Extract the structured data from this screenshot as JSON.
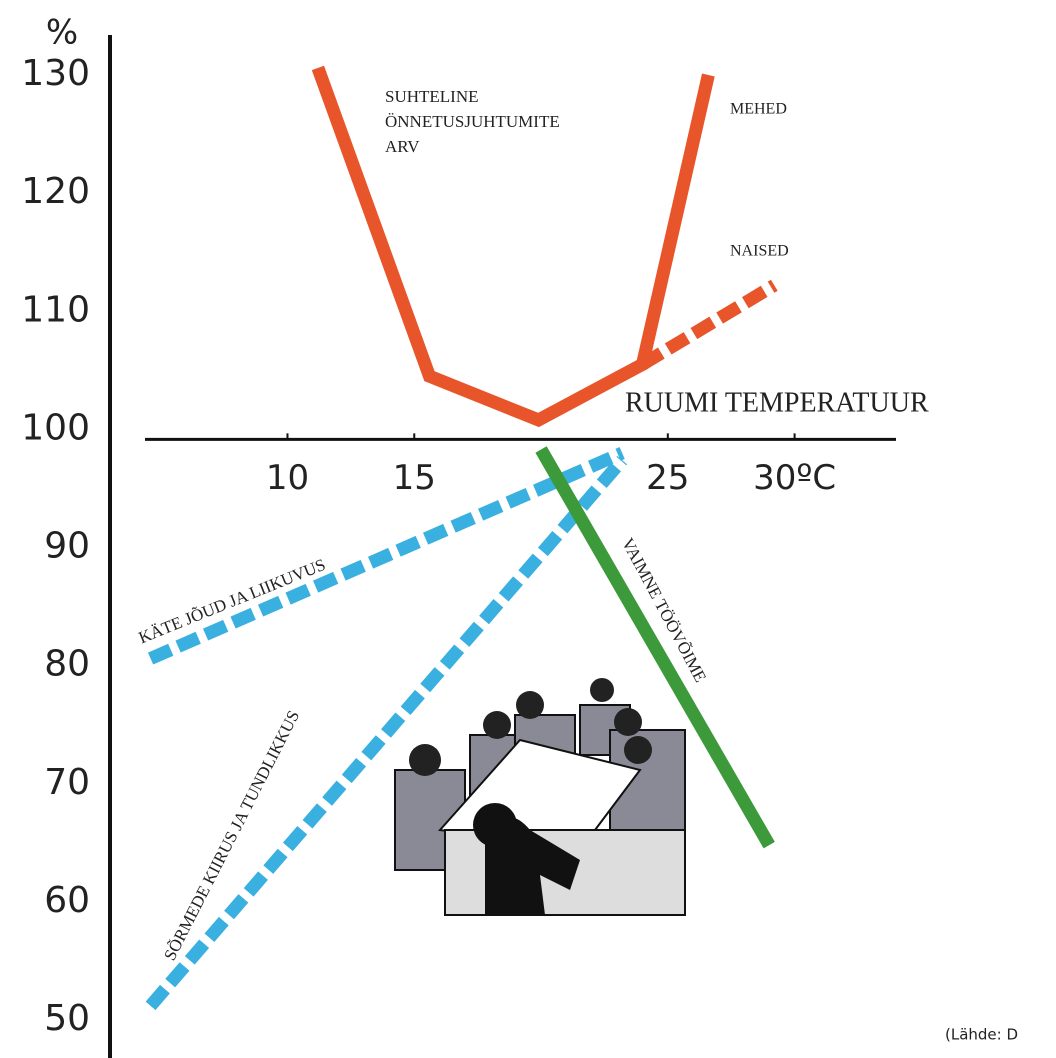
{
  "chart_data": {
    "type": "line",
    "y_label": "%",
    "x_label": "RUUMI TEMPERATUUR",
    "annotation": [
      "SUHTELINE",
      "ÖNNETUSJUHTUMITE",
      "ARV"
    ],
    "source": "(Lähde: D",
    "xlim": [
      3,
      34
    ],
    "ylim": [
      50,
      130
    ],
    "xticks": [
      10,
      15,
      25,
      {
        "value": 30,
        "label": "30ºC"
      }
    ],
    "yticks": [
      50,
      60,
      70,
      80,
      90,
      100,
      110,
      120,
      130
    ],
    "x_axis_crosses": 100,
    "grid": false,
    "series": [
      {
        "name": "MEHED",
        "color": "#e8552a",
        "dashed": false,
        "x": [
          11.2,
          15.6,
          19.9,
          24,
          26.6
        ],
        "values": [
          130.6,
          104.5,
          100.8,
          105.5,
          130
        ]
      },
      {
        "name": "NAISED",
        "color": "#e8552a",
        "dashed": true,
        "x": [
          24,
          29.2
        ],
        "values": [
          105.5,
          112.2
        ]
      },
      {
        "name": "KÄTE JÕUD JA LIIKUVUS",
        "color": "#3ab0e0",
        "dashed": true,
        "x": [
          4.6,
          23.2
        ],
        "values": [
          80.6,
          98
        ]
      },
      {
        "name": "SÕRMEDE KIIRUS JA TUNDLIKKUS",
        "color": "#3ab0e0",
        "dashed": true,
        "x": [
          4.6,
          23.2
        ],
        "values": [
          51.2,
          97.4
        ]
      },
      {
        "name": "VAIMNE TÖÖVÕIME",
        "color": "#3c9a3a",
        "dashed": false,
        "x": [
          20,
          29
        ],
        "values": [
          98.3,
          64.8
        ]
      }
    ]
  }
}
